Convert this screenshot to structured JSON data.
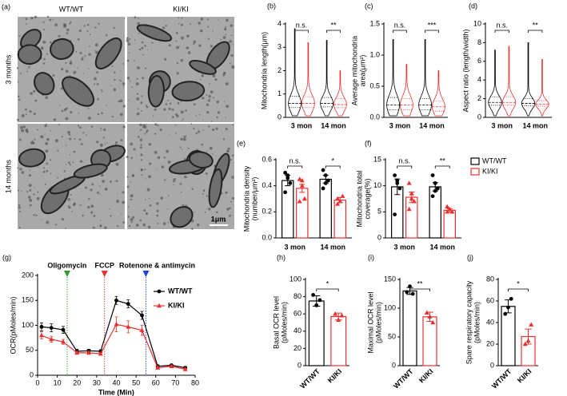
{
  "image_panel": {
    "panel_label": "(a)",
    "columns": [
      "WT/WT",
      "KI/KI"
    ],
    "rows": [
      "3 months",
      "14 months"
    ],
    "scale_bar": "1μm"
  },
  "chart_data": [
    {
      "type": "violin",
      "panel_label": "(b)",
      "ylabel": [
        "Mitochondria length(μm)"
      ],
      "categories": [
        "3 mon",
        "14 mon"
      ],
      "ylim": [
        0,
        4
      ],
      "yticks": [
        0,
        1,
        2,
        3,
        4
      ],
      "significance": [
        "n.s.",
        "**"
      ],
      "series": [
        {
          "name": "WT/WT",
          "color": "#000000",
          "values": [
            0.6,
            0.6
          ],
          "q1": [
            0.42,
            0.45
          ],
          "q3": [
            0.9,
            0.85
          ],
          "max": [
            3.8,
            3.3
          ]
        },
        {
          "name": "KI/KI",
          "color": "#e8312f",
          "values": [
            0.6,
            0.55
          ],
          "q1": [
            0.42,
            0.42
          ],
          "q3": [
            0.88,
            0.8
          ],
          "max": [
            3.2,
            2.0
          ]
        }
      ]
    },
    {
      "type": "violin",
      "panel_label": "(c)",
      "ylabel": [
        "Average mitochondria",
        "area(μm²)"
      ],
      "categories": [
        "3 mon",
        "14 mon"
      ],
      "ylim": [
        0,
        1.5
      ],
      "yticks": [
        {
          "value": 0,
          "label": "0.0"
        },
        {
          "value": 0.5,
          "label": "0.5"
        },
        {
          "value": 1,
          "label": "1.0"
        },
        {
          "value": 1.5,
          "label": "1.5"
        }
      ],
      "significance": [
        "n.s.",
        "***"
      ],
      "series": [
        {
          "name": "WT/WT",
          "color": "#000000",
          "values": [
            0.2,
            0.2
          ],
          "q1": [
            0.12,
            0.12
          ],
          "q3": [
            0.32,
            0.3
          ],
          "max": [
            1.25,
            1.25
          ]
        },
        {
          "name": "KI/KI",
          "color": "#e8312f",
          "values": [
            0.2,
            0.17
          ],
          "q1": [
            0.12,
            0.1
          ],
          "q3": [
            0.3,
            0.26
          ],
          "max": [
            0.85,
            0.75
          ]
        }
      ]
    },
    {
      "type": "violin",
      "panel_label": "(d)",
      "ylabel": [
        "Aspect ratio (length/width)"
      ],
      "categories": [
        "3 mon",
        "14 mon"
      ],
      "ylim": [
        0,
        10
      ],
      "yticks": [
        0,
        2,
        4,
        6,
        8,
        10
      ],
      "significance": [
        "n.s.",
        "**"
      ],
      "series": [
        {
          "name": "WT/WT",
          "color": "#000000",
          "values": [
            1.6,
            1.5
          ],
          "q1": [
            1.3,
            1.25
          ],
          "q3": [
            2.2,
            2.0
          ],
          "max": [
            7.2,
            8.0
          ]
        },
        {
          "name": "KI/KI",
          "color": "#e8312f",
          "values": [
            1.6,
            1.4
          ],
          "q1": [
            1.3,
            1.2
          ],
          "q3": [
            2.2,
            1.8
          ],
          "max": [
            7.6,
            6.2
          ]
        }
      ]
    },
    {
      "type": "bar",
      "panel_label": "(e)",
      "ylabel": [
        "Mitochondria density",
        "(number/μm²)"
      ],
      "categories": [
        "3 mon",
        "14 mon"
      ],
      "ylim": [
        0,
        0.6
      ],
      "yticks": [
        {
          "value": 0,
          "label": "0.0"
        },
        {
          "value": 0.2,
          "label": "0.2"
        },
        {
          "value": 0.4,
          "label": "0.4"
        },
        {
          "value": 0.6,
          "label": "0.6"
        }
      ],
      "significance": [
        "n.s.",
        "*"
      ],
      "series": [
        {
          "name": "WT/WT",
          "color": "#000000",
          "marker": "circle",
          "values": [
            0.44,
            0.45
          ],
          "errors": [
            0.04,
            0.03
          ],
          "points": [
            [
              0.5,
              0.48,
              0.42,
              0.35,
              0.46
            ],
            [
              0.52,
              0.48,
              0.44,
              0.38,
              0.42
            ]
          ]
        },
        {
          "name": "KI/KI",
          "color": "#e8312f",
          "marker": "triangle",
          "values": [
            0.38,
            0.29
          ],
          "errors": [
            0.03,
            0.02
          ],
          "points": [
            [
              0.45,
              0.4,
              0.3,
              0.28,
              0.44
            ],
            [
              0.3,
              0.28,
              0.32,
              0.26
            ]
          ]
        }
      ]
    },
    {
      "type": "bar",
      "panel_label": "(f)",
      "ylabel": [
        "Mitochondria total",
        "coverage(%)"
      ],
      "categories": [
        "3 mon",
        "14 mon"
      ],
      "ylim": [
        0,
        15
      ],
      "yticks": [
        0,
        5,
        10,
        15
      ],
      "significance": [
        "n.s.",
        "**"
      ],
      "legend": "right",
      "series": [
        {
          "name": "WT/WT",
          "color": "#000000",
          "marker": "circle",
          "values": [
            9.8,
            9.8
          ],
          "errors": [
            1.5,
            0.8
          ],
          "points": [
            [
              12,
              11,
              9.5,
              4.5,
              10.5
            ],
            [
              12,
              10.5,
              9.5,
              8,
              9
            ]
          ]
        },
        {
          "name": "KI/KI",
          "color": "#e8312f",
          "marker": "triangle",
          "values": [
            7.8,
            5.3
          ],
          "errors": [
            1.0,
            0.3
          ],
          "points": [
            [
              10.5,
              8.5,
              7,
              5.5,
              7.5
            ],
            [
              6,
              5.5,
              5,
              5
            ]
          ]
        }
      ]
    },
    {
      "type": "line",
      "panel_label": "(g)",
      "xlabel": "Time (Min)",
      "ylabel": [
        "OCR(pMoles/min)"
      ],
      "x": [
        2,
        7,
        13,
        20,
        26,
        32,
        40,
        46,
        53,
        61,
        68,
        75
      ],
      "xlim": [
        0,
        80
      ],
      "xticks": [
        0,
        10,
        20,
        30,
        40,
        50,
        60,
        70,
        80
      ],
      "ylim": [
        0,
        200
      ],
      "yticks": [
        0,
        50,
        100,
        150,
        200
      ],
      "legend": "upper right",
      "annotations": [
        {
          "text": "Oligomycin",
          "x": 15,
          "color": "#2ca02c"
        },
        {
          "text": "FCCP",
          "x": 34,
          "color": "#e8312f"
        },
        {
          "text": "Rotenone & antimycin",
          "x": 55,
          "color": "#1f3fd8"
        }
      ],
      "series": [
        {
          "name": "WT/WT",
          "color": "#000000",
          "marker": "circle",
          "values": [
            97,
            95,
            91,
            48,
            49,
            48,
            150,
            143,
            120,
            18,
            20,
            15
          ],
          "errors": [
            8,
            8,
            7,
            4,
            3,
            3,
            8,
            8,
            8,
            3,
            2,
            2
          ]
        },
        {
          "name": "KI/KI",
          "color": "#e8312f",
          "marker": "triangle",
          "values": [
            80,
            72,
            67,
            45,
            45,
            43,
            102,
            97,
            90,
            15,
            18,
            12
          ],
          "errors": [
            7,
            6,
            5,
            3,
            3,
            3,
            15,
            12,
            10,
            3,
            2,
            2
          ]
        }
      ]
    },
    {
      "type": "bar",
      "panel_label": "(h)",
      "ylabel": [
        "Basal OCR level",
        "(pMoles/min)"
      ],
      "categories": [
        "WT/WT",
        "KI/KI"
      ],
      "ylim": [
        0,
        100
      ],
      "yticks": [
        0,
        20,
        40,
        60,
        80,
        100
      ],
      "significance": "*",
      "colors": [
        "#000000",
        "#e8312f"
      ],
      "markers": [
        "circle",
        "triangle"
      ],
      "values": [
        75,
        57
      ],
      "errors": [
        6,
        4
      ],
      "points": [
        [
          82,
          70,
          76
        ],
        [
          60,
          53,
          58
        ]
      ]
    },
    {
      "type": "bar",
      "panel_label": "(i)",
      "ylabel": [
        "Maximal OCR level",
        "(pMoles/min)"
      ],
      "categories": [
        "WT/WT",
        "KI/KI"
      ],
      "ylim": [
        0,
        150
      ],
      "yticks": [
        0,
        50,
        100,
        150
      ],
      "significance": "**",
      "colors": [
        "#000000",
        "#e8312f"
      ],
      "markers": [
        "circle",
        "triangle"
      ],
      "values": [
        130,
        85
      ],
      "errors": [
        6,
        8
      ],
      "points": [
        [
          128,
          138,
          125
        ],
        [
          92,
          85,
          75
        ]
      ]
    },
    {
      "type": "bar",
      "panel_label": "(j)",
      "ylabel": [
        "Spare respiratory capacity",
        "(pMoles/min)"
      ],
      "categories": [
        "WT/WT",
        "KI/KI"
      ],
      "ylim": [
        0,
        80
      ],
      "yticks": [
        0,
        20,
        40,
        60,
        80
      ],
      "significance": "*",
      "colors": [
        "#000000",
        "#e8312f"
      ],
      "markers": [
        "circle",
        "triangle"
      ],
      "values": [
        55,
        27
      ],
      "errors": [
        6,
        7
      ],
      "points": [
        [
          48,
          54,
          62
        ],
        [
          20,
          23,
          38
        ]
      ]
    }
  ]
}
